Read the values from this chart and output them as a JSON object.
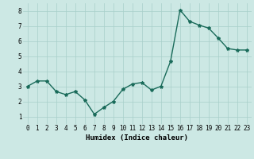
{
  "x": [
    0,
    1,
    2,
    3,
    4,
    5,
    6,
    7,
    8,
    9,
    10,
    11,
    12,
    13,
    14,
    15,
    16,
    17,
    18,
    19,
    20,
    21,
    22,
    23
  ],
  "y": [
    3.0,
    3.35,
    3.35,
    2.65,
    2.45,
    2.65,
    2.1,
    1.15,
    1.6,
    2.0,
    2.8,
    3.15,
    3.25,
    2.75,
    3.0,
    4.65,
    8.05,
    7.3,
    7.05,
    6.85,
    6.2,
    5.5,
    5.4,
    5.4
  ],
  "line_color": "#1a6b5a",
  "marker": "*",
  "marker_size": 3,
  "bg_color": "#cce8e4",
  "grid_color": "#a8cfc9",
  "xlabel": "Humidex (Indice chaleur)",
  "xlim": [
    -0.5,
    23.5
  ],
  "ylim": [
    0.5,
    8.5
  ],
  "yticks": [
    1,
    2,
    3,
    4,
    5,
    6,
    7,
    8
  ],
  "xticks": [
    0,
    1,
    2,
    3,
    4,
    5,
    6,
    7,
    8,
    9,
    10,
    11,
    12,
    13,
    14,
    15,
    16,
    17,
    18,
    19,
    20,
    21,
    22,
    23
  ],
  "xlabel_fontsize": 6.5,
  "tick_fontsize": 5.5,
  "line_width": 1.0
}
